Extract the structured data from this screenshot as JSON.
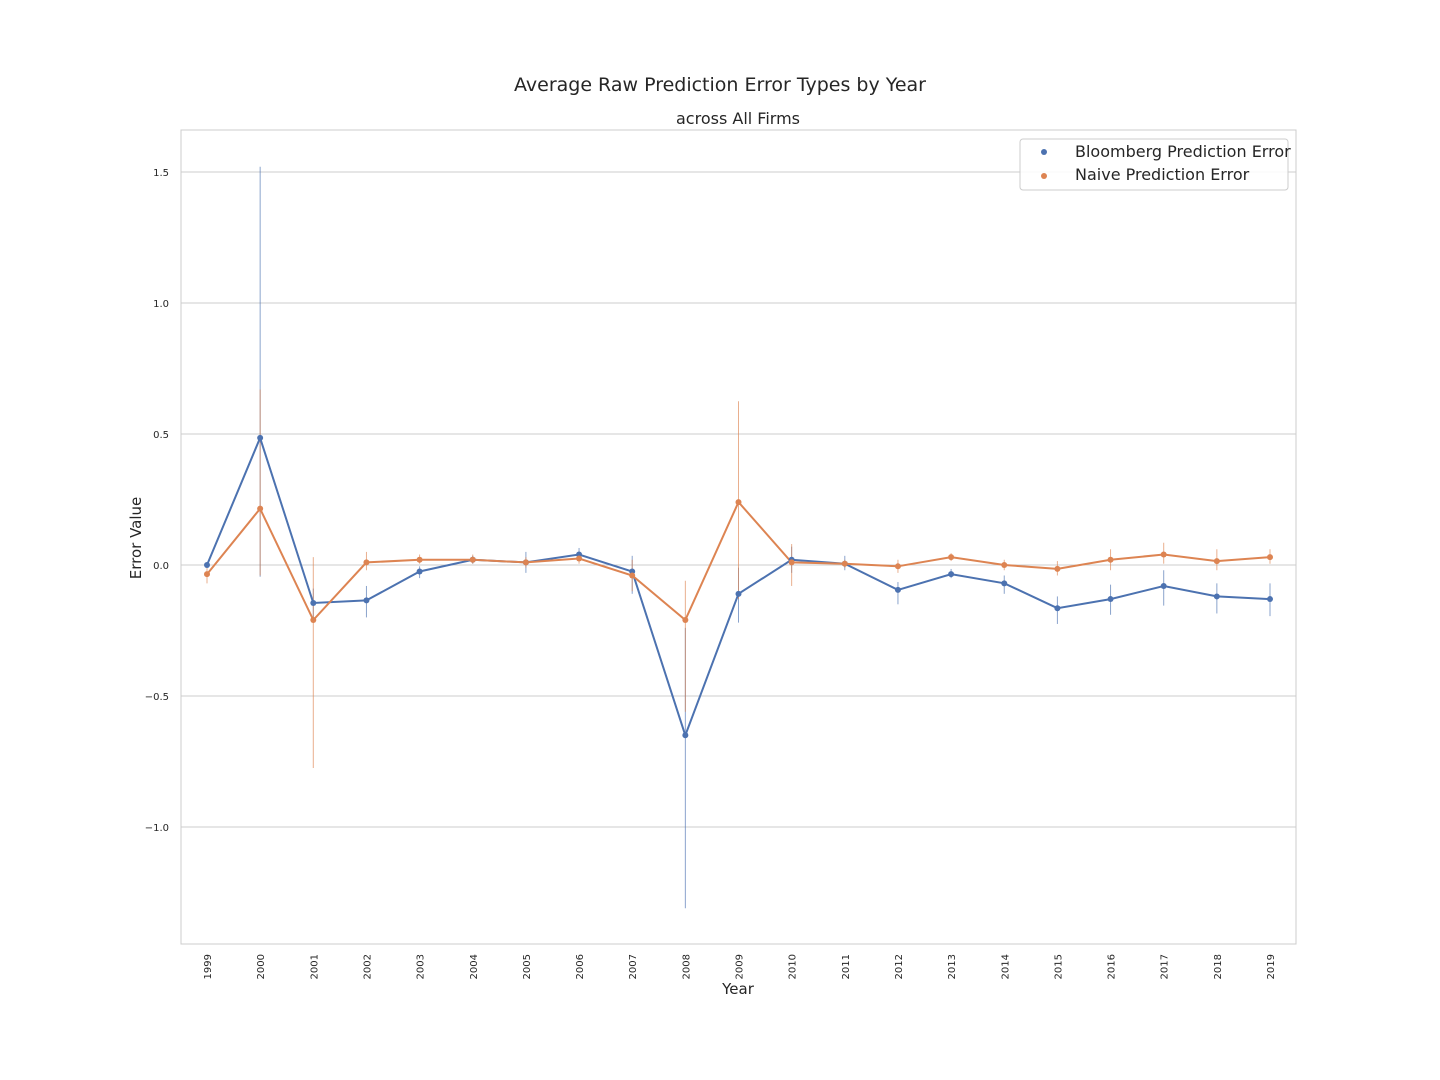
{
  "chart_data": {
    "type": "line",
    "title": "Average Raw Prediction Error Types by Year",
    "subtitle": "across All Firms",
    "xlabel": "Year",
    "ylabel": "Error Value",
    "categories": [
      "1999",
      "2000",
      "2001",
      "2002",
      "2003",
      "2004",
      "2005",
      "2006",
      "2007",
      "2008",
      "2009",
      "2010",
      "2011",
      "2012",
      "2013",
      "2014",
      "2015",
      "2016",
      "2017",
      "2018",
      "2019"
    ],
    "ylim": [
      -1.45,
      1.66
    ],
    "yticks": [
      1.5,
      1.0,
      0.5,
      0.0,
      -0.5,
      -1.0
    ],
    "ytick_labels": [
      "1.5",
      "1.0",
      "0.5",
      "0.0",
      "−0.5",
      "−1.0"
    ],
    "grid": "horizontal",
    "legend_position": "top-right",
    "series": [
      {
        "name": "Bloomberg Prediction Error",
        "color": "#4c72b0",
        "values": [
          0.0,
          0.485,
          -0.145,
          -0.135,
          -0.025,
          0.02,
          0.01,
          0.04,
          -0.025,
          -0.65,
          -0.11,
          0.02,
          0.005,
          -0.095,
          -0.035,
          -0.07,
          -0.165,
          -0.13,
          -0.08,
          -0.12,
          -0.13
        ],
        "err_low": [
          -0.01,
          -0.045,
          -0.2,
          -0.2,
          -0.05,
          0.005,
          -0.03,
          0.02,
          -0.11,
          -1.31,
          -0.22,
          -0.03,
          -0.02,
          -0.15,
          -0.05,
          -0.11,
          -0.225,
          -0.19,
          -0.155,
          -0.185,
          -0.195
        ],
        "err_high": [
          0.01,
          1.52,
          -0.09,
          -0.08,
          -0.005,
          0.035,
          0.05,
          0.065,
          0.035,
          -0.24,
          -0.01,
          0.07,
          0.035,
          -0.065,
          -0.015,
          -0.04,
          -0.12,
          -0.075,
          -0.02,
          -0.07,
          -0.07
        ]
      },
      {
        "name": "Naive Prediction Error",
        "color": "#dd8452",
        "values": [
          -0.035,
          0.215,
          -0.21,
          0.01,
          0.02,
          0.02,
          0.01,
          0.025,
          -0.04,
          -0.21,
          0.24,
          0.01,
          0.005,
          -0.005,
          0.03,
          0.0,
          -0.015,
          0.02,
          0.04,
          0.015,
          0.03
        ],
        "err_low": [
          -0.07,
          -0.04,
          -0.775,
          -0.02,
          0.005,
          0.005,
          -0.01,
          0.005,
          -0.1,
          -0.56,
          -0.13,
          -0.08,
          -0.01,
          -0.03,
          0.015,
          -0.02,
          -0.04,
          -0.02,
          0.005,
          -0.02,
          0.005
        ],
        "err_high": [
          -0.005,
          0.67,
          0.03,
          0.05,
          0.04,
          0.04,
          0.03,
          0.04,
          0.02,
          -0.06,
          0.625,
          0.08,
          0.02,
          0.02,
          0.045,
          0.02,
          0.015,
          0.06,
          0.085,
          0.06,
          0.06
        ]
      }
    ]
  }
}
